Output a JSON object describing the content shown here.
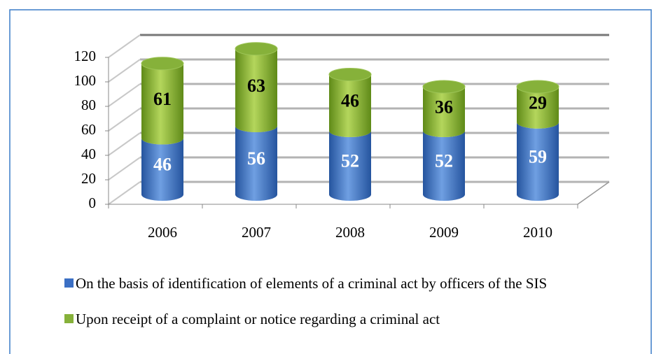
{
  "chart_data": {
    "type": "bar3d_stacked",
    "categories": [
      "2006",
      "2007",
      "2008",
      "2009",
      "2010"
    ],
    "series": [
      {
        "name": "On the basis of identification of elements of a criminal act by officers of the SIS",
        "color": "#3b6fc4",
        "values": [
          46,
          56,
          52,
          52,
          59
        ]
      },
      {
        "name": "Upon receipt of a complaint or notice regarding a criminal act",
        "color": "#86b13a",
        "values": [
          61,
          63,
          46,
          36,
          29
        ]
      }
    ],
    "ylim": [
      0,
      120
    ],
    "yticks": [
      0,
      20,
      40,
      60,
      80,
      100,
      120
    ],
    "grid": true
  }
}
